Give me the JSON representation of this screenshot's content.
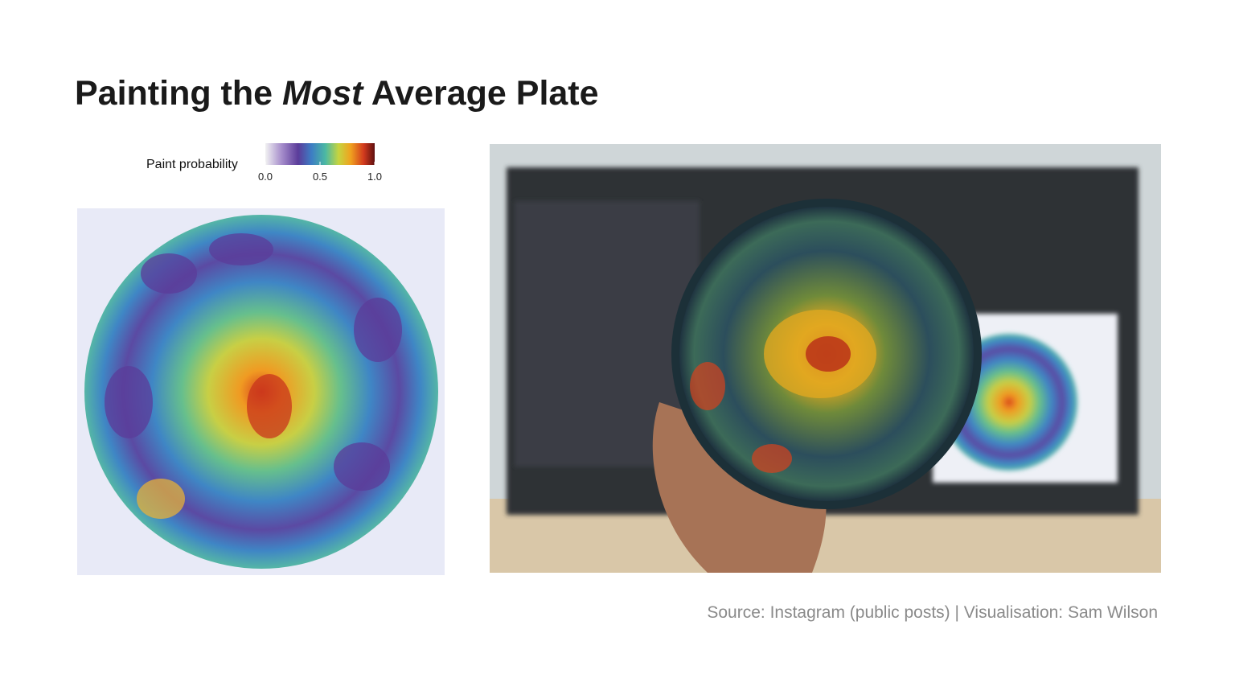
{
  "header": {
    "title_parts": [
      "Painting the",
      "Most",
      "Average Plate"
    ]
  },
  "legend": {
    "title": "Paint probability",
    "range": [
      0,
      1
    ],
    "ticks": [
      {
        "value": 0,
        "label": "0.0"
      },
      {
        "value": 0.5,
        "label": "0.5"
      },
      {
        "value": 1,
        "label": "1.0"
      }
    ]
  },
  "footer": {
    "source": "Source: Instagram (public posts) | Visualisation: Sam Wilson"
  }
}
